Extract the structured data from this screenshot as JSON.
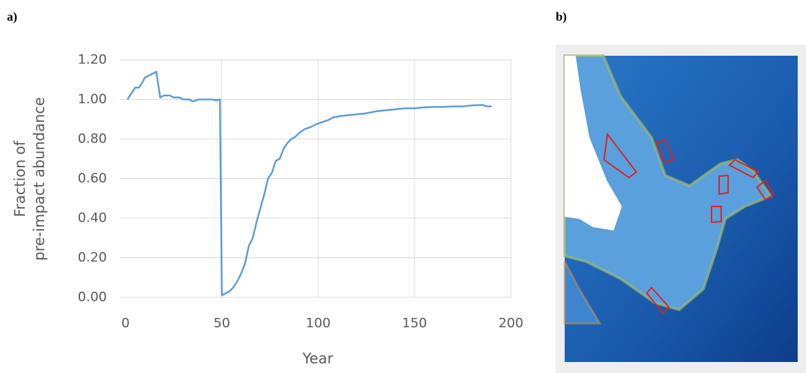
{
  "panel_labels": [
    "a)",
    "b)"
  ],
  "chart_data": {
    "type": "line",
    "xlabel": "Year",
    "ylabel": [
      "Fraction of",
      "pre-impact abundance"
    ],
    "x": [
      1,
      3,
      5,
      7,
      9,
      10,
      12,
      14,
      16,
      18,
      20,
      23,
      25,
      28,
      30,
      33,
      35,
      38,
      40,
      43,
      45,
      47,
      49,
      50,
      52,
      54,
      56,
      58,
      60,
      62,
      64,
      66,
      68,
      70,
      72,
      74,
      76,
      78,
      80,
      82,
      84,
      86,
      88,
      90,
      93,
      96,
      99,
      102,
      105,
      108,
      111,
      115,
      120,
      125,
      130,
      135,
      140,
      145,
      150,
      155,
      160,
      165,
      170,
      175,
      180,
      185,
      188,
      190
    ],
    "series": [
      {
        "color": "#5b9bd5",
        "values": [
          1.0,
          1.03,
          1.06,
          1.06,
          1.09,
          1.11,
          1.12,
          1.13,
          1.14,
          1.01,
          1.02,
          1.02,
          1.01,
          1.01,
          1.0,
          1.0,
          0.99,
          1.0,
          1.0,
          1.0,
          1.0,
          0.995,
          1.0,
          0.01,
          0.02,
          0.03,
          0.05,
          0.08,
          0.12,
          0.17,
          0.26,
          0.3,
          0.38,
          0.45,
          0.52,
          0.6,
          0.63,
          0.69,
          0.7,
          0.75,
          0.78,
          0.8,
          0.81,
          0.83,
          0.85,
          0.86,
          0.875,
          0.885,
          0.895,
          0.91,
          0.915,
          0.92,
          0.925,
          0.93,
          0.94,
          0.945,
          0.95,
          0.955,
          0.955,
          0.96,
          0.962,
          0.962,
          0.965,
          0.965,
          0.97,
          0.972,
          0.965,
          0.965
        ]
      }
    ],
    "xlim": [
      0,
      200
    ],
    "xticks": [
      0,
      50,
      100,
      150,
      200
    ],
    "ylim": [
      0,
      1.2
    ],
    "yticks": [
      {
        "value": 0,
        "label": "0.00"
      },
      {
        "value": 0.2,
        "label": "0.20"
      },
      {
        "value": 0.4,
        "label": "0.40"
      },
      {
        "value": 0.6,
        "label": "0.60"
      },
      {
        "value": 0.8,
        "label": "0.80"
      },
      {
        "value": 1.0,
        "label": "1.00"
      },
      {
        "value": 1.2,
        "label": "1.20"
      }
    ],
    "grid": true
  }
}
